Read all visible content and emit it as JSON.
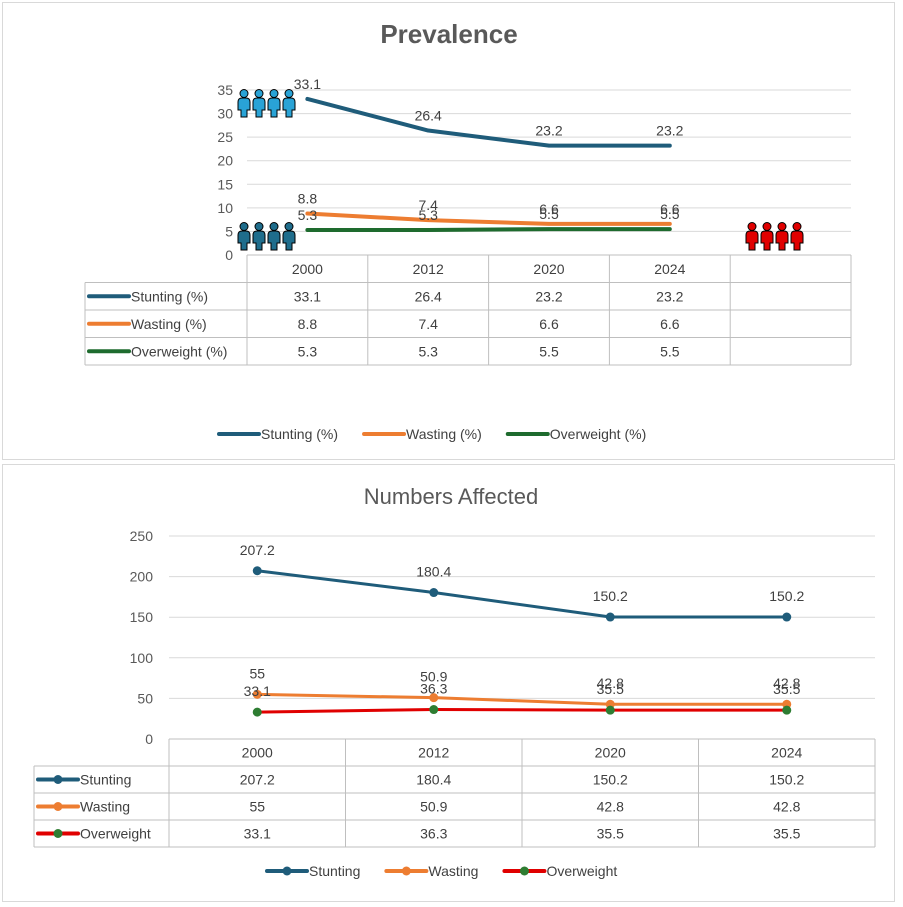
{
  "chart_data": [
    {
      "type": "line",
      "title": "Prevalence",
      "categories": [
        "2000",
        "2012",
        "2020",
        "2024"
      ],
      "ylim": [
        0,
        35
      ],
      "yticks": [
        0,
        5,
        10,
        15,
        20,
        25,
        30,
        35
      ],
      "series": [
        {
          "name": "Stunting (%)",
          "values": [
            33.1,
            26.4,
            23.2,
            23.2
          ],
          "color": "#1f5c7a",
          "marker": false
        },
        {
          "name": "Wasting (%)",
          "values": [
            8.8,
            7.4,
            6.6,
            6.6
          ],
          "color": "#ed7d31",
          "marker": false
        },
        {
          "name": "Overweight (%)",
          "values": [
            5.3,
            5.3,
            5.5,
            5.5
          ],
          "color": "#1e6b2e",
          "marker": false
        }
      ],
      "data_table": true,
      "legend": "bottom",
      "icons": [
        {
          "name": "people-group-blue-icon",
          "color": "#29a3d6"
        },
        {
          "name": "people-group-teal-icon",
          "color": "#1f6d8c"
        },
        {
          "name": "people-group-red-icon",
          "color": "#e00000"
        }
      ]
    },
    {
      "type": "line",
      "title": "Numbers Affected",
      "categories": [
        "2000",
        "2012",
        "2020",
        "2024"
      ],
      "ylim": [
        0,
        250
      ],
      "yticks": [
        0,
        50,
        100,
        150,
        200,
        250
      ],
      "series": [
        {
          "name": "Stunting",
          "values": [
            207.2,
            180.4,
            150.2,
            150.2
          ],
          "color": "#1f5c7a",
          "marker": true,
          "markerColor": "#1f5c7a"
        },
        {
          "name": "Wasting",
          "values": [
            55,
            50.9,
            42.8,
            42.8
          ],
          "color": "#ed7d31",
          "marker": true,
          "markerColor": "#ed7d31"
        },
        {
          "name": "Overweight",
          "values": [
            33.1,
            36.3,
            35.5,
            35.5
          ],
          "color": "#e00000",
          "marker": true,
          "markerColor": "#2e7d32"
        }
      ],
      "data_table": true,
      "legend": "bottom"
    }
  ]
}
